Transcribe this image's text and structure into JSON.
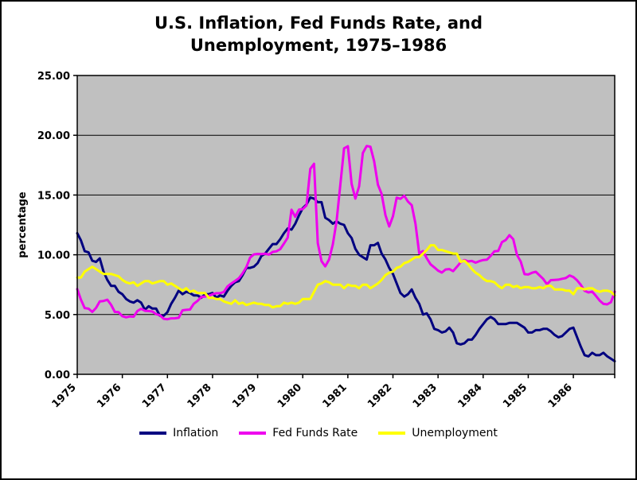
{
  "chart_data": {
    "type": "line",
    "title": "U.S. Inflation, Fed Funds Rate, and Unemployment, 1975–1986",
    "title_lines": [
      "U.S. Inflation, Fed Funds Rate, and",
      "Unemployment, 1975–1986"
    ],
    "xlabel": "",
    "ylabel": "percentage",
    "ylim": [
      0,
      25
    ],
    "ytick_values": [
      0,
      5,
      10,
      15,
      20,
      25
    ],
    "ytick_labels": [
      "0.00",
      "5.00",
      "10.00",
      "15.00",
      "20.00",
      "25.00"
    ],
    "x_unit": "month",
    "x_ticks": {
      "positions": [
        0,
        12,
        24,
        36,
        48,
        60,
        72,
        84,
        96,
        108,
        120,
        132
      ],
      "labels": [
        "1975",
        "1976",
        "1977",
        "1978",
        "1979",
        "1980",
        "1981",
        "1982",
        "1983",
        "1984",
        "1985",
        "1986"
      ]
    },
    "grid": true,
    "legend_position": "bottom",
    "colors": {
      "plot_bg": "#c0c0c0",
      "gridline": "#000000",
      "axis": "#000000"
    },
    "series": [
      {
        "id": "inflation",
        "name": "Inflation",
        "color": "#000080",
        "values": [
          11.8,
          11.2,
          10.3,
          10.2,
          9.5,
          9.4,
          9.7,
          8.6,
          7.9,
          7.4,
          7.4,
          6.9,
          6.7,
          6.3,
          6.1,
          6.0,
          6.2,
          6.0,
          5.4,
          5.7,
          5.5,
          5.5,
          4.9,
          4.9,
          5.2,
          5.9,
          6.4,
          7.0,
          6.7,
          6.9,
          6.8,
          6.6,
          6.6,
          6.4,
          6.7,
          6.7,
          6.8,
          6.4,
          6.6,
          6.5,
          7.0,
          7.4,
          7.7,
          7.8,
          8.3,
          8.9,
          8.9,
          9.0,
          9.3,
          9.9,
          10.1,
          10.5,
          10.9,
          10.9,
          11.3,
          11.8,
          12.2,
          12.1,
          12.6,
          13.3,
          13.9,
          14.2,
          14.8,
          14.7,
          14.4,
          14.4,
          13.1,
          12.9,
          12.6,
          12.8,
          12.6,
          12.5,
          11.8,
          11.4,
          10.5,
          10.0,
          9.8,
          9.6,
          10.8,
          10.8,
          11.0,
          10.1,
          9.6,
          8.9,
          8.4,
          7.6,
          6.8,
          6.5,
          6.7,
          7.1,
          6.4,
          5.9,
          5.0,
          5.1,
          4.6,
          3.8,
          3.7,
          3.5,
          3.6,
          3.9,
          3.5,
          2.6,
          2.5,
          2.6,
          2.9,
          2.9,
          3.3,
          3.8,
          4.2,
          4.6,
          4.8,
          4.6,
          4.2,
          4.2,
          4.2,
          4.3,
          4.3,
          4.3,
          4.1,
          3.9,
          3.5,
          3.5,
          3.7,
          3.7,
          3.8,
          3.8,
          3.6,
          3.3,
          3.1,
          3.2,
          3.5,
          3.8,
          3.9,
          3.1,
          2.3,
          1.6,
          1.5,
          1.8,
          1.6,
          1.6,
          1.8,
          1.5,
          1.3,
          1.1
        ]
      },
      {
        "id": "fed-funds-rate",
        "name": "Fed Funds Rate",
        "color": "#ee00ee",
        "values": [
          7.13,
          6.24,
          5.54,
          5.49,
          5.22,
          5.55,
          6.1,
          6.14,
          6.24,
          5.82,
          5.22,
          5.2,
          4.87,
          4.77,
          4.84,
          4.82,
          5.29,
          5.48,
          5.31,
          5.29,
          5.25,
          5.03,
          4.95,
          4.65,
          4.61,
          4.68,
          4.69,
          4.73,
          5.35,
          5.39,
          5.42,
          5.9,
          6.14,
          6.47,
          6.51,
          6.56,
          6.7,
          6.78,
          6.79,
          6.89,
          7.36,
          7.6,
          7.81,
          8.04,
          8.45,
          8.96,
          9.76,
          10.03,
          10.07,
          10.06,
          10.09,
          10.01,
          10.24,
          10.29,
          10.47,
          10.94,
          11.43,
          13.77,
          13.18,
          13.78,
          13.82,
          14.13,
          17.19,
          17.61,
          10.98,
          9.47,
          9.03,
          9.61,
          10.87,
          12.81,
          15.85,
          18.9,
          19.08,
          15.93,
          14.7,
          15.72,
          18.52,
          19.1,
          19.04,
          17.82,
          15.87,
          15.08,
          13.31,
          12.37,
          13.22,
          14.78,
          14.68,
          14.94,
          14.45,
          14.15,
          12.59,
          10.12,
          10.31,
          9.71,
          9.2,
          8.95,
          8.68,
          8.51,
          8.77,
          8.8,
          8.63,
          8.98,
          9.37,
          9.56,
          9.45,
          9.48,
          9.34,
          9.47,
          9.56,
          9.59,
          9.91,
          10.29,
          10.32,
          11.06,
          11.23,
          11.64,
          11.3,
          9.99,
          9.43,
          8.38,
          8.35,
          8.5,
          8.58,
          8.27,
          7.97,
          7.53,
          7.88,
          7.9,
          7.92,
          7.99,
          8.05,
          8.27,
          8.14,
          7.86,
          7.48,
          6.99,
          6.85,
          6.92,
          6.56,
          6.17,
          5.89,
          5.85,
          6.04,
          6.91
        ]
      },
      {
        "id": "unemployment",
        "name": "Unemployment",
        "color": "#ffff00",
        "values": [
          8.1,
          8.1,
          8.6,
          8.8,
          9.0,
          8.8,
          8.6,
          8.4,
          8.4,
          8.4,
          8.3,
          8.2,
          7.9,
          7.7,
          7.6,
          7.7,
          7.4,
          7.6,
          7.8,
          7.8,
          7.6,
          7.7,
          7.8,
          7.8,
          7.5,
          7.6,
          7.4,
          7.2,
          7.0,
          7.2,
          6.9,
          7.0,
          6.8,
          6.8,
          6.8,
          6.4,
          6.4,
          6.3,
          6.3,
          6.1,
          6.0,
          5.9,
          6.2,
          5.9,
          6.0,
          5.8,
          5.9,
          6.0,
          5.9,
          5.9,
          5.8,
          5.8,
          5.6,
          5.7,
          5.7,
          6.0,
          5.9,
          6.0,
          5.9,
          6.0,
          6.3,
          6.3,
          6.3,
          6.9,
          7.5,
          7.6,
          7.8,
          7.7,
          7.5,
          7.5,
          7.5,
          7.2,
          7.5,
          7.4,
          7.4,
          7.2,
          7.5,
          7.5,
          7.2,
          7.4,
          7.6,
          7.9,
          8.3,
          8.5,
          8.6,
          8.9,
          9.0,
          9.3,
          9.4,
          9.6,
          9.8,
          9.8,
          10.1,
          10.4,
          10.8,
          10.8,
          10.4,
          10.4,
          10.3,
          10.2,
          10.1,
          10.1,
          9.4,
          9.5,
          9.2,
          8.8,
          8.5,
          8.3,
          8.0,
          7.8,
          7.8,
          7.7,
          7.4,
          7.2,
          7.5,
          7.5,
          7.3,
          7.4,
          7.2,
          7.3,
          7.3,
          7.2,
          7.2,
          7.3,
          7.2,
          7.4,
          7.4,
          7.1,
          7.1,
          7.1,
          7.0,
          7.0,
          6.7,
          7.2,
          7.2,
          7.1,
          7.2,
          7.2,
          7.0,
          6.9,
          7.0,
          7.0,
          6.9,
          6.6
        ]
      }
    ]
  }
}
